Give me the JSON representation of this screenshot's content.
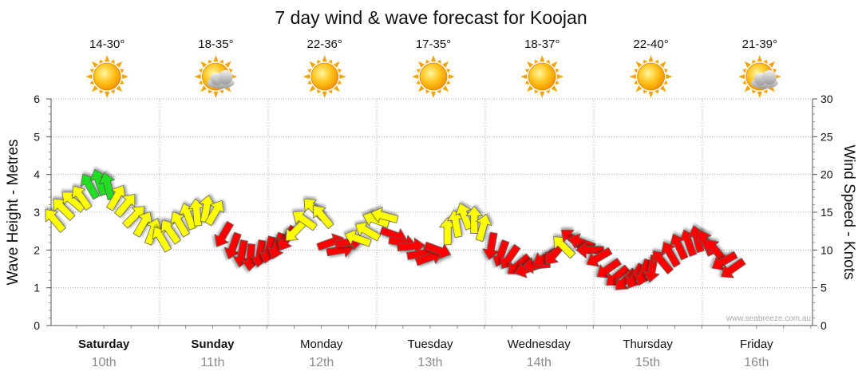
{
  "title": "7 day wind & wave forecast for Koojan",
  "watermark": "www.seabreeze.com.au",
  "chart_data": {
    "type": "line",
    "ylabel_left": "Wave Height - Metres",
    "ylabel_right": "Wind Speed - Knots",
    "ylim_left": [
      0,
      6
    ],
    "ylim_right": [
      0,
      30
    ],
    "yticks_left": [
      "0",
      "1",
      "2",
      "3",
      "4",
      "5",
      "6"
    ],
    "yticks_right": [
      "0",
      "5",
      "10",
      "15",
      "20",
      "25",
      "30"
    ],
    "days": [
      {
        "name": "Saturday",
        "date": "10th",
        "bold": true,
        "temp": "14-30°",
        "weather_icon": "sun-icon"
      },
      {
        "name": "Sunday",
        "date": "11th",
        "bold": true,
        "temp": "18-35°",
        "weather_icon": "sun-cloud-icon"
      },
      {
        "name": "Monday",
        "date": "12th",
        "bold": false,
        "temp": "22-36°",
        "weather_icon": "sun-icon"
      },
      {
        "name": "Tuesday",
        "date": "13th",
        "bold": false,
        "temp": "17-35°",
        "weather_icon": "sun-icon"
      },
      {
        "name": "Wednesday",
        "date": "14th",
        "bold": false,
        "temp": "18-37°",
        "weather_icon": "sun-icon"
      },
      {
        "name": "Thursday",
        "date": "15th",
        "bold": false,
        "temp": "22-40°",
        "weather_icon": "sun-icon"
      },
      {
        "name": "Friday",
        "date": "16th",
        "bold": false,
        "temp": "21-39°",
        "weather_icon": "sun-cloud-icon"
      }
    ],
    "colors": {
      "light": "#22dd22",
      "moderate": "#ffff00",
      "strong": "#ff0000",
      "grid": "#888888",
      "axis": "#444444"
    },
    "series": [
      {
        "name": "Wind",
        "unit": "knots",
        "points": [
          {
            "x": 0.0,
            "speed": 14.0,
            "dir": 230,
            "cat": "moderate"
          },
          {
            "x": 0.08,
            "speed": 15.5,
            "dir": 225,
            "cat": "moderate"
          },
          {
            "x": 0.17,
            "speed": 16.5,
            "dir": 220,
            "cat": "moderate"
          },
          {
            "x": 0.25,
            "speed": 17.0,
            "dir": 235,
            "cat": "moderate"
          },
          {
            "x": 0.33,
            "speed": 18.5,
            "dir": 240,
            "cat": "light"
          },
          {
            "x": 0.42,
            "speed": 19.0,
            "dir": 250,
            "cat": "light"
          },
          {
            "x": 0.5,
            "speed": 18.5,
            "dir": 255,
            "cat": "light"
          },
          {
            "x": 0.58,
            "speed": 17.0,
            "dir": 300,
            "cat": "moderate"
          },
          {
            "x": 0.67,
            "speed": 16.0,
            "dir": 310,
            "cat": "moderate"
          },
          {
            "x": 0.75,
            "speed": 14.5,
            "dir": 315,
            "cat": "moderate"
          },
          {
            "x": 0.83,
            "speed": 13.5,
            "dir": 300,
            "cat": "moderate"
          },
          {
            "x": 0.92,
            "speed": 12.5,
            "dir": 290,
            "cat": "moderate"
          },
          {
            "x": 1.0,
            "speed": 11.5,
            "dir": 240,
            "cat": "moderate"
          },
          {
            "x": 1.08,
            "speed": 12.5,
            "dir": 235,
            "cat": "moderate"
          },
          {
            "x": 1.17,
            "speed": 13.5,
            "dir": 240,
            "cat": "moderate"
          },
          {
            "x": 1.25,
            "speed": 14.5,
            "dir": 250,
            "cat": "moderate"
          },
          {
            "x": 1.33,
            "speed": 15.0,
            "dir": 265,
            "cat": "moderate"
          },
          {
            "x": 1.42,
            "speed": 15.5,
            "dir": 280,
            "cat": "moderate"
          },
          {
            "x": 1.5,
            "speed": 15.0,
            "dir": 300,
            "cat": "moderate"
          },
          {
            "x": 1.58,
            "speed": 12.0,
            "dir": 120,
            "cat": "strong"
          },
          {
            "x": 1.67,
            "speed": 10.5,
            "dir": 110,
            "cat": "strong"
          },
          {
            "x": 1.75,
            "speed": 9.5,
            "dir": 100,
            "cat": "strong"
          },
          {
            "x": 1.83,
            "speed": 9.0,
            "dir": 95,
            "cat": "strong"
          },
          {
            "x": 1.92,
            "speed": 9.5,
            "dir": 100,
            "cat": "strong"
          },
          {
            "x": 2.0,
            "speed": 10.0,
            "dir": 105,
            "cat": "strong"
          },
          {
            "x": 2.08,
            "speed": 10.5,
            "dir": 110,
            "cat": "strong"
          },
          {
            "x": 2.17,
            "speed": 11.5,
            "dir": 120,
            "cat": "strong"
          },
          {
            "x": 2.25,
            "speed": 12.5,
            "dir": 135,
            "cat": "moderate"
          },
          {
            "x": 2.33,
            "speed": 14.0,
            "dir": 215,
            "cat": "moderate"
          },
          {
            "x": 2.42,
            "speed": 15.5,
            "dir": 225,
            "cat": "moderate"
          },
          {
            "x": 2.5,
            "speed": 14.5,
            "dir": 230,
            "cat": "moderate"
          },
          {
            "x": 2.58,
            "speed": 11.0,
            "dir": 340,
            "cat": "strong"
          },
          {
            "x": 2.67,
            "speed": 10.0,
            "dir": 350,
            "cat": "strong"
          },
          {
            "x": 2.75,
            "speed": 11.0,
            "dir": 355,
            "cat": "strong"
          },
          {
            "x": 2.83,
            "speed": 11.5,
            "dir": 200,
            "cat": "moderate"
          },
          {
            "x": 2.92,
            "speed": 12.5,
            "dir": 210,
            "cat": "moderate"
          },
          {
            "x": 3.0,
            "speed": 14.0,
            "dir": 200,
            "cat": "moderate"
          },
          {
            "x": 3.08,
            "speed": 14.5,
            "dir": 195,
            "cat": "moderate"
          },
          {
            "x": 3.17,
            "speed": 12.0,
            "dir": 20,
            "cat": "strong"
          },
          {
            "x": 3.25,
            "speed": 11.0,
            "dir": 10,
            "cat": "strong"
          },
          {
            "x": 3.33,
            "speed": 10.5,
            "dir": 355,
            "cat": "strong"
          },
          {
            "x": 3.42,
            "speed": 9.5,
            "dir": 350,
            "cat": "strong"
          },
          {
            "x": 3.5,
            "speed": 9.0,
            "dir": 340,
            "cat": "strong"
          },
          {
            "x": 3.58,
            "speed": 10.0,
            "dir": 20,
            "cat": "strong"
          },
          {
            "x": 3.67,
            "speed": 12.5,
            "dir": 270,
            "cat": "moderate"
          },
          {
            "x": 3.75,
            "speed": 13.5,
            "dir": 260,
            "cat": "moderate"
          },
          {
            "x": 3.83,
            "speed": 14.5,
            "dir": 250,
            "cat": "moderate"
          },
          {
            "x": 3.92,
            "speed": 14.0,
            "dir": 270,
            "cat": "moderate"
          },
          {
            "x": 4.0,
            "speed": 13.0,
            "dir": 285,
            "cat": "moderate"
          },
          {
            "x": 4.08,
            "speed": 10.5,
            "dir": 100,
            "cat": "strong"
          },
          {
            "x": 4.17,
            "speed": 9.5,
            "dir": 110,
            "cat": "strong"
          },
          {
            "x": 4.25,
            "speed": 9.0,
            "dir": 125,
            "cat": "strong"
          },
          {
            "x": 4.33,
            "speed": 8.0,
            "dir": 140,
            "cat": "strong"
          },
          {
            "x": 4.42,
            "speed": 7.5,
            "dir": 160,
            "cat": "strong"
          },
          {
            "x": 4.5,
            "speed": 8.0,
            "dir": 175,
            "cat": "strong"
          },
          {
            "x": 4.58,
            "speed": 9.0,
            "dir": 150,
            "cat": "strong"
          },
          {
            "x": 4.67,
            "speed": 9.5,
            "dir": 130,
            "cat": "strong"
          },
          {
            "x": 4.75,
            "speed": 10.5,
            "dir": 225,
            "cat": "moderate"
          },
          {
            "x": 4.83,
            "speed": 11.5,
            "dir": 220,
            "cat": "strong"
          },
          {
            "x": 4.92,
            "speed": 11.0,
            "dir": 200,
            "cat": "strong"
          },
          {
            "x": 5.0,
            "speed": 10.0,
            "dir": 180,
            "cat": "strong"
          },
          {
            "x": 5.08,
            "speed": 9.0,
            "dir": 150,
            "cat": "strong"
          },
          {
            "x": 5.17,
            "speed": 7.5,
            "dir": 145,
            "cat": "strong"
          },
          {
            "x": 5.25,
            "speed": 6.5,
            "dir": 140,
            "cat": "strong"
          },
          {
            "x": 5.33,
            "speed": 6.0,
            "dir": 135,
            "cat": "strong"
          },
          {
            "x": 5.42,
            "speed": 6.5,
            "dir": 120,
            "cat": "strong"
          },
          {
            "x": 5.5,
            "speed": 7.0,
            "dir": 110,
            "cat": "strong"
          },
          {
            "x": 5.58,
            "speed": 7.5,
            "dir": 100,
            "cat": "strong"
          },
          {
            "x": 5.67,
            "speed": 8.5,
            "dir": 230,
            "cat": "strong"
          },
          {
            "x": 5.75,
            "speed": 9.5,
            "dir": 240,
            "cat": "strong"
          },
          {
            "x": 5.83,
            "speed": 10.5,
            "dir": 245,
            "cat": "strong"
          },
          {
            "x": 5.92,
            "speed": 11.0,
            "dir": 250,
            "cat": "strong"
          },
          {
            "x": 6.0,
            "speed": 11.5,
            "dir": 255,
            "cat": "strong"
          },
          {
            "x": 6.08,
            "speed": 11.0,
            "dir": 245,
            "cat": "strong"
          },
          {
            "x": 6.17,
            "speed": 10.0,
            "dir": 230,
            "cat": "strong"
          },
          {
            "x": 6.25,
            "speed": 8.5,
            "dir": 150,
            "cat": "strong"
          },
          {
            "x": 6.33,
            "speed": 7.5,
            "dir": 145,
            "cat": "strong"
          }
        ]
      }
    ]
  }
}
